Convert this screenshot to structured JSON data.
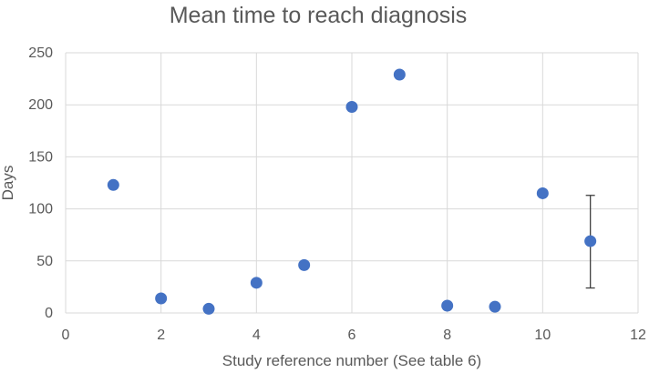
{
  "chart_data": {
    "type": "scatter",
    "title": "Mean time to reach diagnosis",
    "xlabel": "Study reference number (See table 6)",
    "ylabel": "Days",
    "xlim": [
      0,
      12
    ],
    "ylim": [
      0,
      250
    ],
    "xticks": [
      0,
      2,
      4,
      6,
      8,
      10,
      12
    ],
    "yticks": [
      0,
      50,
      100,
      150,
      200,
      250
    ],
    "grid": true,
    "point_color": "#4472c4",
    "error_bar_color": "#404040",
    "points": [
      {
        "x": 1,
        "y": 123
      },
      {
        "x": 2,
        "y": 14
      },
      {
        "x": 3,
        "y": 4
      },
      {
        "x": 4,
        "y": 29
      },
      {
        "x": 5,
        "y": 46
      },
      {
        "x": 6,
        "y": 198
      },
      {
        "x": 7,
        "y": 229
      },
      {
        "x": 8,
        "y": 7
      },
      {
        "x": 9,
        "y": 6
      },
      {
        "x": 10,
        "y": 115
      },
      {
        "x": 11,
        "y": 69,
        "error_low": 24,
        "error_high": 113
      }
    ]
  }
}
